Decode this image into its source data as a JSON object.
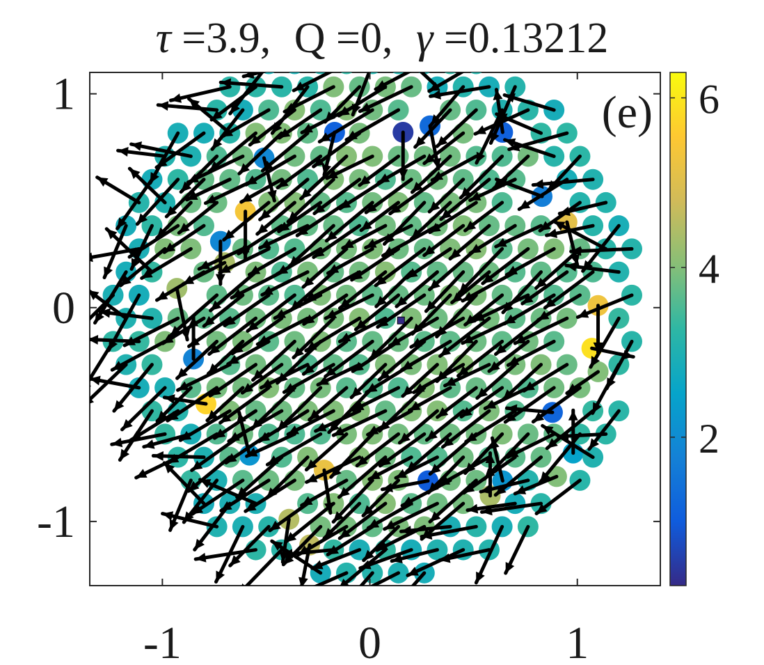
{
  "chart_data": {
    "type": "scatter",
    "title_parts": {
      "tau_symbol": "τ",
      "tau_value": "=3.9,",
      "q_label": "Q",
      "q_value": "=0,",
      "gamma_symbol": "γ",
      "gamma_value": "=0.13212"
    },
    "panel_label": "(e)",
    "xlim": [
      -1.35,
      1.4
    ],
    "ylim": [
      -1.3,
      1.1
    ],
    "x_ticks": [
      -1,
      0,
      1
    ],
    "x_tick_labels": [
      "-1",
      "0",
      "1"
    ],
    "y_ticks": [
      -1,
      0,
      1
    ],
    "y_tick_labels": [
      "-1",
      "0",
      "1"
    ],
    "grid": false,
    "colorbar": {
      "colormap": "parula",
      "range": [
        0.25,
        6.3
      ],
      "ticks": [
        2,
        4,
        6
      ],
      "tick_labels": [
        "2",
        "4",
        "6"
      ]
    },
    "center_marker": {
      "x": 0.15,
      "y": -0.06
    },
    "arrow_color": "#000000",
    "point_field": {
      "description_of_layout": "disk of particles on triangular lattice",
      "radius": 1.28,
      "spacing": 0.125,
      "arrow_length": 0.26,
      "dominant_angle_deg": 215,
      "interior_value": 3.8,
      "edge_value": 3.1
    },
    "points": [
      {
        "x": -0.6,
        "y": 0.45,
        "c": 5.4,
        "dx": 0.0,
        "dy": -0.22
      },
      {
        "x": -0.7,
        "y": 0.21,
        "c": 4.4,
        "dx": -0.2,
        "dy": -0.1
      },
      {
        "x": -0.93,
        "y": 0.09,
        "c": 4.3,
        "dx": 0.05,
        "dy": -0.24
      },
      {
        "x": 1.1,
        "y": 0.01,
        "c": 5.3,
        "dx": 0.0,
        "dy": -0.22
      },
      {
        "x": 1.07,
        "y": -0.19,
        "c": 5.9,
        "dx": 0.2,
        "dy": -0.04
      },
      {
        "x": 0.95,
        "y": 0.4,
        "c": 5.1,
        "dx": 0.05,
        "dy": -0.2
      },
      {
        "x": -0.79,
        "y": -0.45,
        "c": 5.7,
        "dx": -0.2,
        "dy": 0.03
      },
      {
        "x": -0.22,
        "y": -0.76,
        "c": 5.2,
        "dx": 0.03,
        "dy": -0.2
      },
      {
        "x": -0.39,
        "y": -0.99,
        "c": 4.5,
        "dx": -0.03,
        "dy": -0.2
      },
      {
        "x": -0.29,
        "y": -1.11,
        "c": 4.6,
        "dx": -0.04,
        "dy": -0.2
      },
      {
        "x": 0.58,
        "y": -0.88,
        "c": 4.4,
        "dx": 0.0,
        "dy": 0.2
      },
      {
        "x": 0.9,
        "y": -0.79,
        "c": 4.0,
        "dx": -0.2,
        "dy": -0.08
      },
      {
        "x": 1.1,
        "y": -0.3,
        "c": 4.0,
        "dx": -0.15,
        "dy": -0.1
      },
      {
        "x": -0.17,
        "y": 0.82,
        "c": 1.1,
        "dx": -0.05,
        "dy": -0.2
      },
      {
        "x": 0.16,
        "y": 0.82,
        "c": 0.5,
        "dx": 0.0,
        "dy": -0.22
      },
      {
        "x": 0.29,
        "y": 0.85,
        "c": 1.3,
        "dx": 0.04,
        "dy": -0.2
      },
      {
        "x": 0.64,
        "y": 0.82,
        "c": 1.1,
        "dx": -0.03,
        "dy": 0.2
      },
      {
        "x": 0.83,
        "y": 0.52,
        "c": 1.7,
        "dx": -0.22,
        "dy": 0.08
      },
      {
        "x": 0.88,
        "y": -0.49,
        "c": 1.2,
        "dx": -0.22,
        "dy": 0.02
      },
      {
        "x": 0.28,
        "y": -0.81,
        "c": 1.0,
        "dx": -0.22,
        "dy": -0.04
      },
      {
        "x": -0.72,
        "y": 0.31,
        "c": 1.9,
        "dx": 0.0,
        "dy": -0.2
      },
      {
        "x": -0.85,
        "y": -0.24,
        "c": 1.8,
        "dx": 0.0,
        "dy": 0.2
      },
      {
        "x": -0.51,
        "y": 0.7,
        "c": 1.9,
        "dx": 0.05,
        "dy": -0.2
      },
      {
        "x": -0.58,
        "y": -0.69,
        "c": 2.2,
        "dx": -0.05,
        "dy": 0.2
      },
      {
        "x": 0.64,
        "y": -0.81,
        "c": 2.2,
        "dx": -0.05,
        "dy": 0.2
      },
      {
        "x": 0.98,
        "y": -0.68,
        "c": 2.5,
        "dx": 0.0,
        "dy": 0.2
      }
    ]
  }
}
